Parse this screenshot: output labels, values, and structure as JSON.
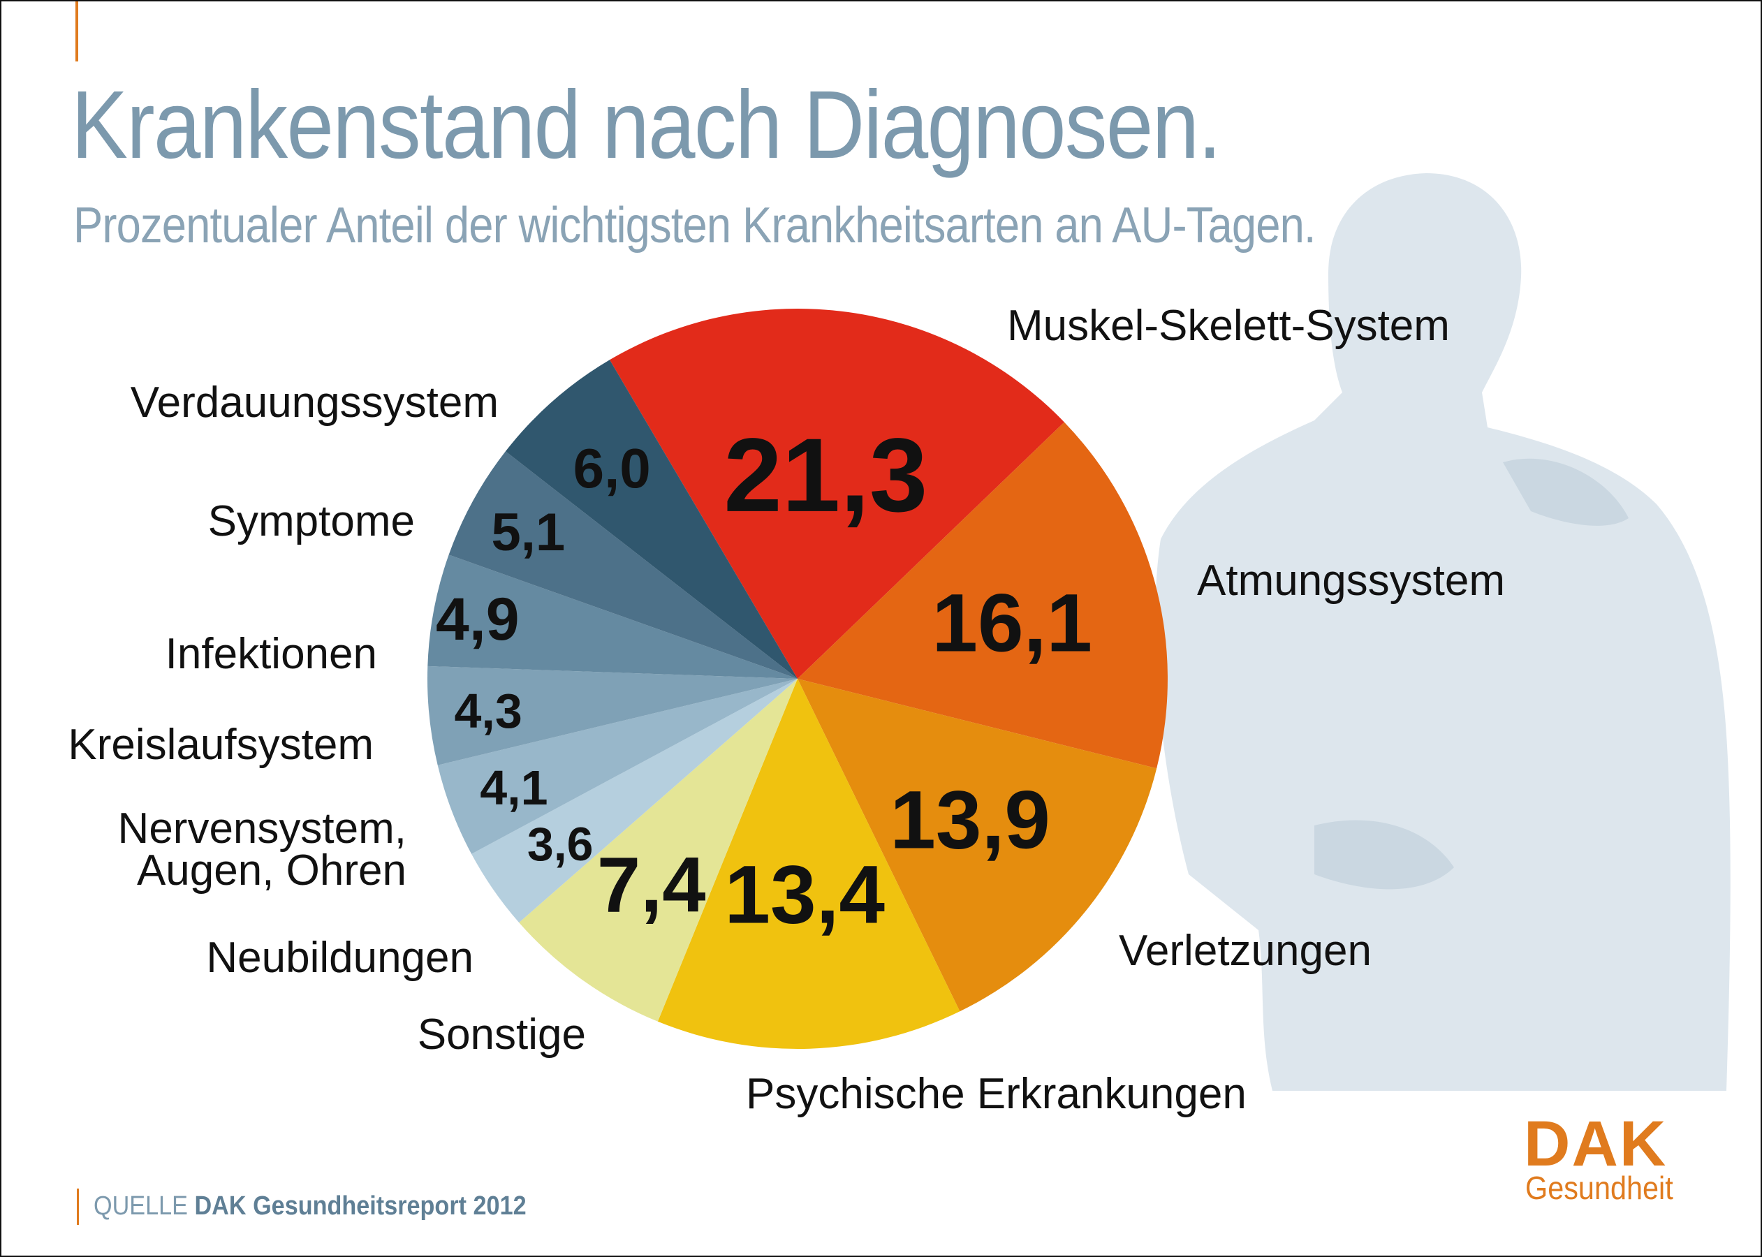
{
  "title": "Krankenstand nach Diagnosen.",
  "subtitle": "Prozentualer Anteil der wichtigsten Krankheitsarten an AU-Tagen.",
  "source": {
    "prefix": "QUELLE",
    "name": "DAK Gesundheitsreport 2012"
  },
  "logo": {
    "word": "DAK",
    "sub": "Gesundheit"
  },
  "colors": {
    "title": "#7c99ad",
    "accent": "#e07b1e"
  },
  "chart_data": {
    "type": "pie",
    "start_angle_deg": -30.5,
    "direction": "clockwise",
    "slices": [
      {
        "name": "Muskel-Skelett-System",
        "value": 21.3,
        "label": "21,3",
        "color": "#e22b1a"
      },
      {
        "name": "Atmungssystem",
        "value": 16.1,
        "label": "16,1",
        "color": "#e46613"
      },
      {
        "name": "Verletzungen",
        "value": 13.9,
        "label": "13,9",
        "color": "#e58d0e"
      },
      {
        "name": "Psychische Erkrankungen",
        "value": 13.4,
        "label": "13,4",
        "color": "#f0c20f"
      },
      {
        "name": "Sonstige",
        "value": 7.4,
        "label": "7,4",
        "color": "#e4e596"
      },
      {
        "name": "Neubildungen",
        "value": 3.6,
        "label": "3,6",
        "color": "#b5cfde"
      },
      {
        "name": "Nervensystem, Augen, Ohren",
        "lines": [
          "Nervensystem,",
          "Augen, Ohren"
        ],
        "value": 4.1,
        "label": "4,1",
        "color": "#98b7ca"
      },
      {
        "name": "Kreislaufsystem",
        "value": 4.3,
        "label": "4,3",
        "color": "#7fa1b6"
      },
      {
        "name": "Infektionen",
        "value": 4.9,
        "label": "4,9",
        "color": "#658aa1"
      },
      {
        "name": "Symptome",
        "value": 5.1,
        "label": "5,1",
        "color": "#4d7189"
      },
      {
        "name": "Verdauungssystem",
        "value": 6.0,
        "label": "6,0",
        "color": "#30576e"
      }
    ]
  }
}
